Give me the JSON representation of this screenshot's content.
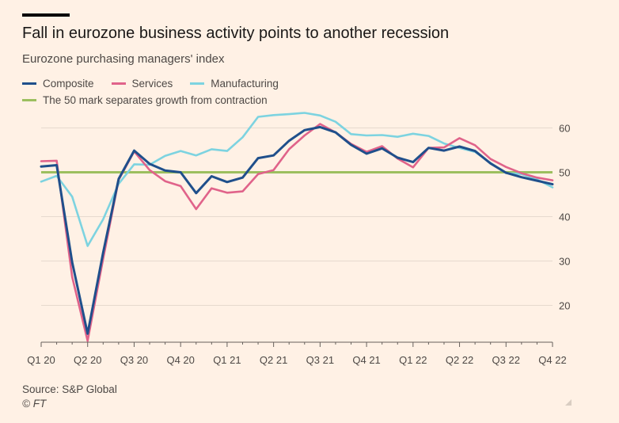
{
  "header": {
    "title": "Fall in eurozone business activity points to another recession",
    "subtitle": "Eurozone purchasing managers' index"
  },
  "legend": {
    "composite": "Composite",
    "services": "Services",
    "manufacturing": "Manufacturing",
    "threshold": "The 50 mark separates growth from contraction"
  },
  "footer": {
    "source": "Source: S&P Global",
    "credit": "© FT"
  },
  "colors": {
    "composite": "#1f4f8b",
    "services": "#e0638a",
    "manufacturing": "#7dd3e0",
    "threshold": "#9cbf5f",
    "grid": "#e6d9ce"
  },
  "chart_data": {
    "type": "line",
    "title": "Fall in eurozone business activity points to another recession",
    "subtitle": "Eurozone purchasing managers' index",
    "x_ticks": [
      "Q1 20",
      "Q2 20",
      "Q3 20",
      "Q4 20",
      "Q1 21",
      "Q2 21",
      "Q3 21",
      "Q4 21",
      "Q1 22",
      "Q2 22",
      "Q3 22",
      "Q4 22"
    ],
    "x_months": [
      "Jan 20",
      "Feb 20",
      "Mar 20",
      "Apr 20",
      "May 20",
      "Jun 20",
      "Jul 20",
      "Aug 20",
      "Sep 20",
      "Oct 20",
      "Nov 20",
      "Dec 20",
      "Jan 21",
      "Feb 21",
      "Mar 21",
      "Apr 21",
      "May 21",
      "Jun 21",
      "Jul 21",
      "Aug 21",
      "Sep 21",
      "Oct 21",
      "Nov 21",
      "Dec 21",
      "Jan 22",
      "Feb 22",
      "Mar 22",
      "Apr 22",
      "May 22",
      "Jun 22",
      "Jul 22",
      "Aug 22",
      "Sep 22",
      "Oct 22"
    ],
    "y_ticks": [
      20,
      30,
      40,
      50,
      60
    ],
    "ylim": [
      12,
      64
    ],
    "threshold": 50,
    "grid": true,
    "y_axis_side": "right",
    "series": [
      {
        "name": "Composite",
        "key": "composite",
        "values": [
          51.3,
          51.6,
          29.7,
          13.6,
          31.9,
          48.5,
          54.9,
          51.9,
          50.4,
          50.0,
          45.3,
          49.1,
          47.8,
          48.8,
          53.2,
          53.8,
          57.1,
          59.5,
          60.2,
          59.0,
          56.2,
          54.2,
          55.4,
          53.3,
          52.3,
          55.5,
          54.9,
          55.8,
          54.8,
          52.0,
          49.9,
          48.9,
          48.1,
          47.3
        ]
      },
      {
        "name": "Services",
        "key": "services",
        "values": [
          52.5,
          52.6,
          26.4,
          12.0,
          30.5,
          48.3,
          54.7,
          50.5,
          48.0,
          46.9,
          41.7,
          46.4,
          45.4,
          45.7,
          49.6,
          50.5,
          55.2,
          58.3,
          60.9,
          59.0,
          56.4,
          54.6,
          55.9,
          53.1,
          51.1,
          55.5,
          55.6,
          57.7,
          56.1,
          53.0,
          51.2,
          49.8,
          48.8,
          48.2
        ]
      },
      {
        "name": "Manufacturing",
        "key": "manufacturing",
        "values": [
          47.9,
          49.2,
          44.5,
          33.4,
          39.4,
          47.4,
          51.8,
          51.7,
          53.7,
          54.8,
          53.8,
          55.2,
          54.8,
          57.9,
          62.5,
          62.9,
          63.1,
          63.4,
          62.8,
          61.4,
          58.6,
          58.3,
          58.4,
          58.0,
          58.7,
          58.2,
          56.5,
          55.5,
          54.6,
          52.1,
          49.8,
          49.6,
          48.4,
          46.6
        ]
      }
    ]
  }
}
